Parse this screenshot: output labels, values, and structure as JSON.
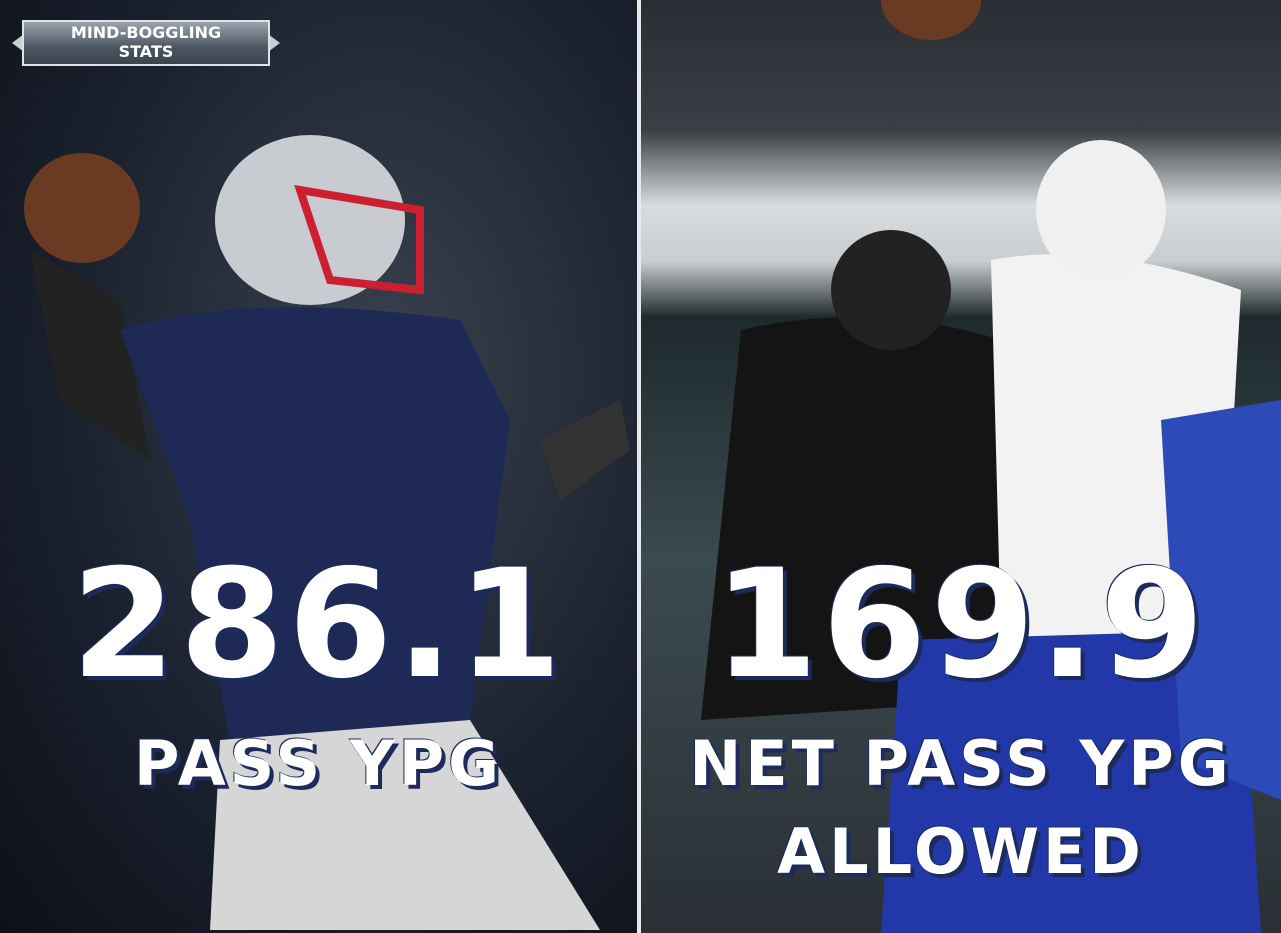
{
  "badge": {
    "lines": [
      "MIND-BOGGLING",
      "STATS"
    ]
  },
  "left": {
    "stat": "286.1",
    "label_lines": [
      "PASS YPG"
    ]
  },
  "right": {
    "stat": "169.9",
    "label_lines": [
      "NET PASS YPG",
      "ALLOWED"
    ]
  }
}
